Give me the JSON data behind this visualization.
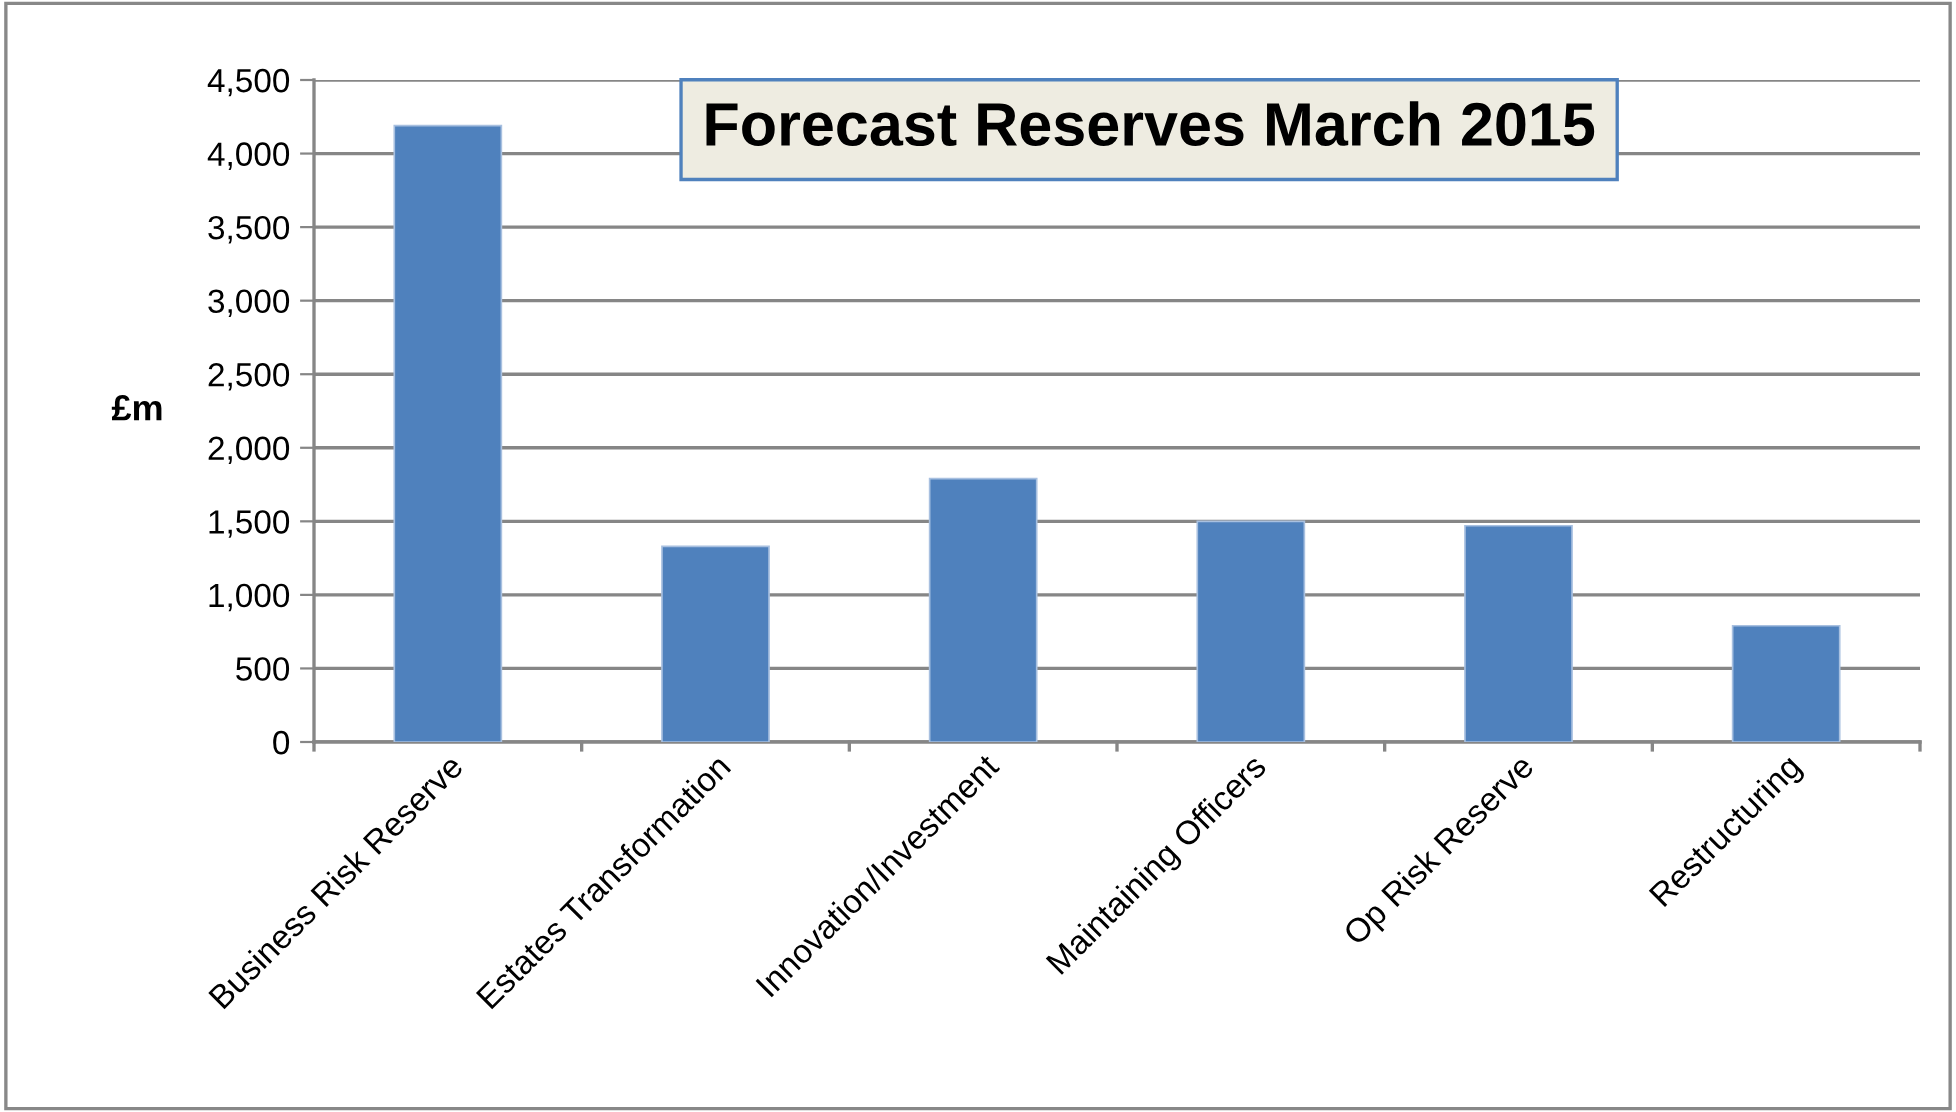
{
  "chart_data": {
    "type": "bar",
    "title": "Forecast Reserves March 2015",
    "ylabel": "£m",
    "categories": [
      "Business Risk Reserve",
      "Estates Transformation",
      "Innovation/Investment",
      "Maintaining Officers",
      "Op Risk Reserve",
      "Restructuring"
    ],
    "values": [
      4190,
      1330,
      1790,
      1500,
      1470,
      790
    ],
    "color": "#4f81bd",
    "ylim": [
      0,
      4500
    ],
    "yticks": [
      {
        "value": 0,
        "label": "0"
      },
      {
        "value": 500,
        "label": "500"
      },
      {
        "value": 1000,
        "label": "1,000"
      },
      {
        "value": 1500,
        "label": "1,500"
      },
      {
        "value": 2000,
        "label": "2,000"
      },
      {
        "value": 2500,
        "label": "2,500"
      },
      {
        "value": 3000,
        "label": "3,000"
      },
      {
        "value": 3500,
        "label": "3,500"
      },
      {
        "value": 4000,
        "label": "4,000"
      },
      {
        "value": 4500,
        "label": "4,500"
      }
    ],
    "grid": "y",
    "legend": false
  }
}
